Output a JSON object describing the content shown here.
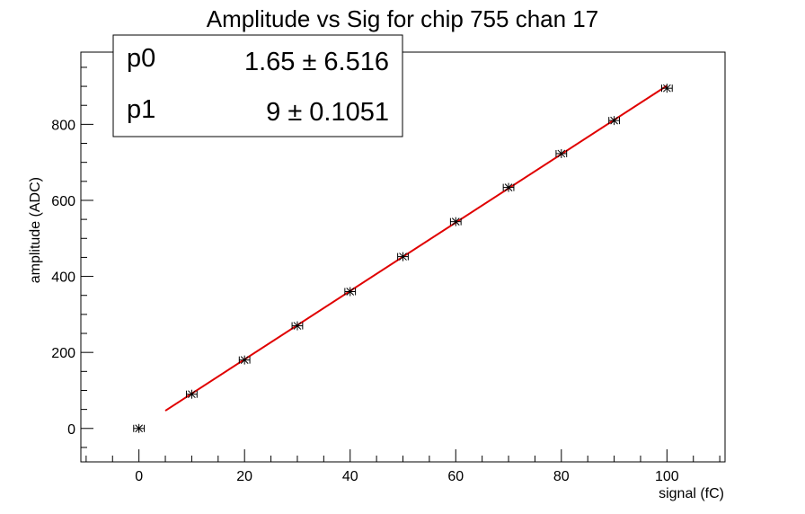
{
  "chart_data": {
    "type": "scatter",
    "title": "Amplitude vs Sig for chip 755 chan 17",
    "xlabel": "signal (fC)",
    "ylabel": "amplitude (ADC)",
    "xlim": [
      -11,
      111
    ],
    "ylim": [
      -88,
      990
    ],
    "x_ticks": [
      0,
      20,
      40,
      60,
      80,
      100
    ],
    "y_ticks": [
      0,
      200,
      400,
      600,
      800
    ],
    "grid": false,
    "points": {
      "x": [
        0,
        10,
        20,
        30,
        40,
        50,
        60,
        70,
        80,
        90,
        100
      ],
      "y": [
        0,
        90,
        180,
        270,
        360,
        452,
        544,
        634,
        723,
        810,
        895
      ]
    },
    "x_error": 1,
    "fit": {
      "color": "#e00000",
      "x_range": [
        5,
        100
      ],
      "p0": 1.65,
      "p1": 9
    },
    "stats_box": {
      "position": "top-left",
      "rows": [
        {
          "name": "p0",
          "value": "1.65 ± 6.516"
        },
        {
          "name": "p1",
          "value": "9 ± 0.1051"
        }
      ]
    }
  }
}
